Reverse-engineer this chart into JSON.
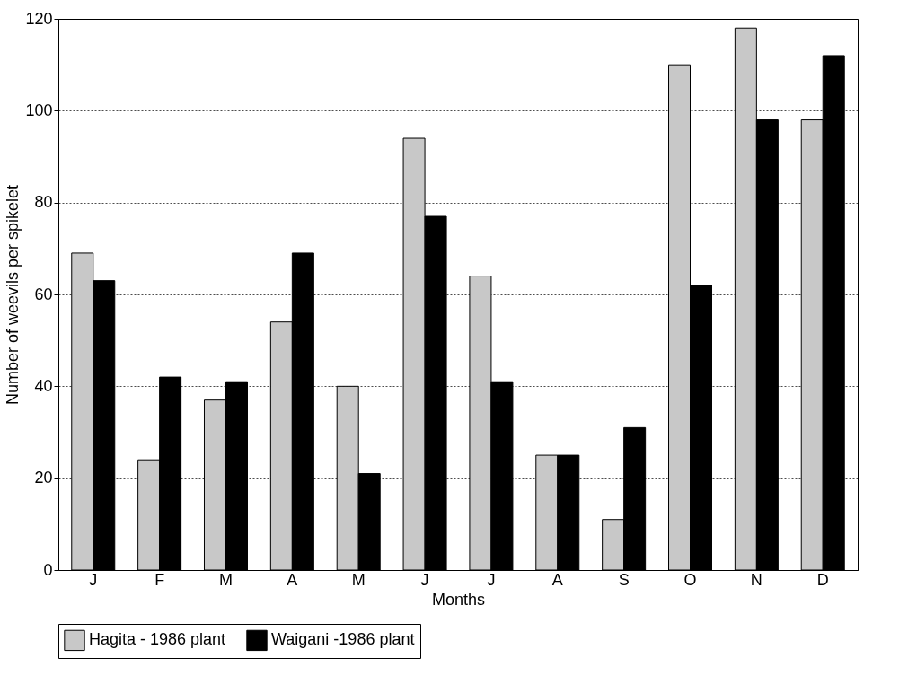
{
  "chart_data": {
    "type": "bar",
    "xlabel": "Months",
    "ylabel": "Number of weevils per spikelet",
    "categories": [
      "J",
      "F",
      "M",
      "A",
      "M",
      "J",
      "J",
      "A",
      "S",
      "O",
      "N",
      "D"
    ],
    "series": [
      {
        "name": "Hagita - 1986 plant",
        "color": "#c8c8c8",
        "values": [
          69,
          24,
          37,
          54,
          40,
          94,
          64,
          25,
          11,
          110,
          118,
          98
        ]
      },
      {
        "name": "Waigani -1986 plant",
        "color": "#000000",
        "values": [
          63,
          42,
          41,
          69,
          21,
          77,
          41,
          25,
          31,
          62,
          98,
          112
        ]
      }
    ],
    "ylim": [
      0,
      120
    ],
    "yticks": [
      0,
      20,
      40,
      60,
      80,
      100,
      120
    ],
    "grid": "y",
    "legend": "bottom"
  }
}
